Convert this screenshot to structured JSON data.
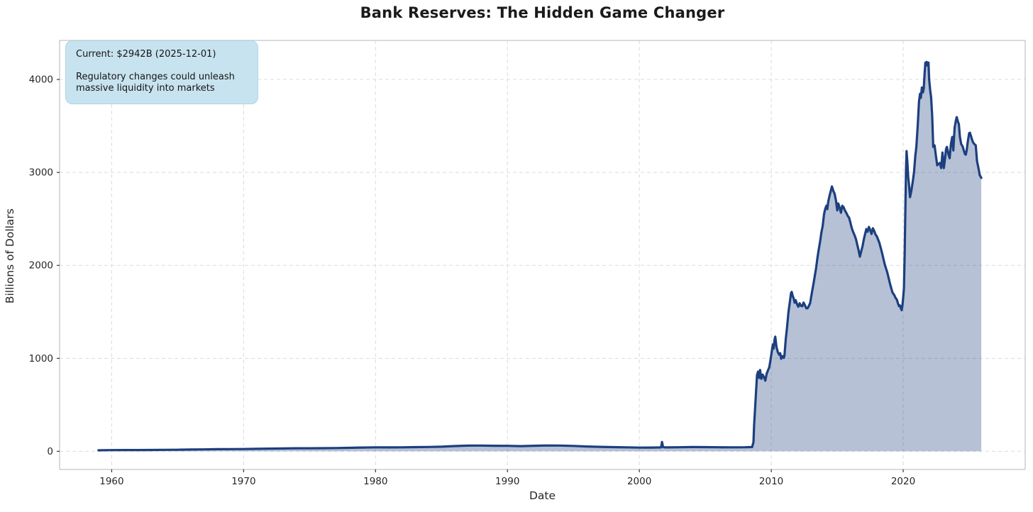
{
  "title": "Bank Reserves: The Hidden Game Changer",
  "annotation": {
    "current_line": "Current: $2942B (2025-12-01)",
    "body": "Regulatory changes could unleash massive liquidity into markets"
  },
  "colors": {
    "line": "#1c3f7e",
    "fill": "#1c3f7e",
    "fill_opacity": 0.32,
    "grid": "#dbdbdb",
    "spine": "#c2c2c2",
    "tick_mark": "#333333",
    "tick_text": "#262626",
    "annotation_bg": "#c7e3ef",
    "title_text": "#1a1a1a"
  },
  "chart_data": {
    "type": "area",
    "title": "Bank Reserves: The Hidden Game Changer",
    "xlabel": "Date",
    "ylabel": "Billions of Dollars",
    "xlim": [
      1956.05,
      2029.25
    ],
    "ylim": [
      -195,
      4420
    ],
    "x_ticks": [
      1960,
      1970,
      1980,
      1990,
      2000,
      2010,
      2020
    ],
    "y_ticks": [
      0,
      1000,
      2000,
      3000,
      4000
    ],
    "grid": true,
    "grid_style": "dashed",
    "legend": "none",
    "current_value": 2942,
    "current_date": "2025-12-01",
    "series": [
      {
        "name": "Bank Reserves (Billions of Dollars)",
        "points": [
          [
            1959.0,
            11
          ],
          [
            1960,
            13
          ],
          [
            1961,
            14
          ],
          [
            1962,
            14
          ],
          [
            1963,
            15
          ],
          [
            1964,
            16
          ],
          [
            1965,
            17
          ],
          [
            1966,
            19
          ],
          [
            1967,
            21
          ],
          [
            1968,
            23
          ],
          [
            1969,
            24
          ],
          [
            1970,
            25
          ],
          [
            1971,
            27
          ],
          [
            1972,
            29
          ],
          [
            1973,
            31
          ],
          [
            1974,
            33
          ],
          [
            1975,
            33
          ],
          [
            1976,
            34
          ],
          [
            1977,
            35
          ],
          [
            1978,
            38
          ],
          [
            1979,
            41
          ],
          [
            1980,
            43
          ],
          [
            1981,
            42
          ],
          [
            1982,
            43
          ],
          [
            1983,
            45
          ],
          [
            1984,
            47
          ],
          [
            1985,
            50
          ],
          [
            1986,
            57
          ],
          [
            1987,
            61
          ],
          [
            1988,
            62
          ],
          [
            1989,
            60
          ],
          [
            1990,
            59
          ],
          [
            1991,
            56
          ],
          [
            1992,
            60
          ],
          [
            1993,
            63
          ],
          [
            1994,
            62
          ],
          [
            1995,
            58
          ],
          [
            1996,
            52
          ],
          [
            1997,
            48
          ],
          [
            1998,
            45
          ],
          [
            1999,
            43
          ],
          [
            2000,
            40
          ],
          [
            2001.0,
            41
          ],
          [
            2001.65,
            42
          ],
          [
            2001.72,
            101
          ],
          [
            2001.8,
            46
          ],
          [
            2002,
            42
          ],
          [
            2003,
            44
          ],
          [
            2004,
            46
          ],
          [
            2005,
            45
          ],
          [
            2006,
            44
          ],
          [
            2007,
            43
          ],
          [
            2008.0,
            44
          ],
          [
            2008.55,
            46
          ],
          [
            2008.65,
            98
          ],
          [
            2008.7,
            280
          ],
          [
            2008.78,
            475
          ],
          [
            2008.85,
            650
          ],
          [
            2008.92,
            820
          ],
          [
            2009.0,
            858
          ],
          [
            2009.08,
            790
          ],
          [
            2009.15,
            875
          ],
          [
            2009.25,
            780
          ],
          [
            2009.35,
            825
          ],
          [
            2009.45,
            795
          ],
          [
            2009.55,
            760
          ],
          [
            2009.65,
            835
          ],
          [
            2009.75,
            870
          ],
          [
            2009.85,
            905
          ],
          [
            2009.95,
            990
          ],
          [
            2010.05,
            1085
          ],
          [
            2010.12,
            1150
          ],
          [
            2010.18,
            1105
          ],
          [
            2010.25,
            1200
          ],
          [
            2010.3,
            1234
          ],
          [
            2010.4,
            1120
          ],
          [
            2010.5,
            1066
          ],
          [
            2010.6,
            1040
          ],
          [
            2010.68,
            1055
          ],
          [
            2010.75,
            995
          ],
          [
            2010.85,
            1025
          ],
          [
            2010.95,
            1005
          ],
          [
            2011.0,
            1031
          ],
          [
            2011.1,
            1205
          ],
          [
            2011.2,
            1340
          ],
          [
            2011.3,
            1495
          ],
          [
            2011.42,
            1620
          ],
          [
            2011.5,
            1705
          ],
          [
            2011.55,
            1714
          ],
          [
            2011.62,
            1675
          ],
          [
            2011.7,
            1645
          ],
          [
            2011.77,
            1599
          ],
          [
            2011.85,
            1625
          ],
          [
            2011.95,
            1585
          ],
          [
            2012.05,
            1555
          ],
          [
            2012.15,
            1592
          ],
          [
            2012.25,
            1565
          ],
          [
            2012.35,
            1561
          ],
          [
            2012.45,
            1600
          ],
          [
            2012.55,
            1572
          ],
          [
            2012.65,
            1540
          ],
          [
            2012.75,
            1538
          ],
          [
            2012.85,
            1565
          ],
          [
            2012.95,
            1595
          ],
          [
            2013.0,
            1642
          ],
          [
            2013.1,
            1722
          ],
          [
            2013.2,
            1802
          ],
          [
            2013.3,
            1885
          ],
          [
            2013.4,
            1972
          ],
          [
            2013.5,
            2082
          ],
          [
            2013.6,
            2172
          ],
          [
            2013.7,
            2255
          ],
          [
            2013.8,
            2352
          ],
          [
            2013.9,
            2425
          ],
          [
            2014.0,
            2552
          ],
          [
            2014.1,
            2612
          ],
          [
            2014.18,
            2643
          ],
          [
            2014.25,
            2605
          ],
          [
            2014.32,
            2685
          ],
          [
            2014.42,
            2752
          ],
          [
            2014.52,
            2805
          ],
          [
            2014.6,
            2849
          ],
          [
            2014.7,
            2802
          ],
          [
            2014.8,
            2772
          ],
          [
            2014.9,
            2702
          ],
          [
            2015.0,
            2592
          ],
          [
            2015.08,
            2666
          ],
          [
            2015.18,
            2622
          ],
          [
            2015.28,
            2566
          ],
          [
            2015.38,
            2642
          ],
          [
            2015.48,
            2627
          ],
          [
            2015.58,
            2592
          ],
          [
            2015.7,
            2562
          ],
          [
            2015.8,
            2532
          ],
          [
            2015.9,
            2513
          ],
          [
            2016.0,
            2462
          ],
          [
            2016.1,
            2402
          ],
          [
            2016.2,
            2361
          ],
          [
            2016.32,
            2322
          ],
          [
            2016.42,
            2282
          ],
          [
            2016.52,
            2222
          ],
          [
            2016.62,
            2162
          ],
          [
            2016.72,
            2094
          ],
          [
            2016.82,
            2152
          ],
          [
            2016.92,
            2205
          ],
          [
            2017.02,
            2282
          ],
          [
            2017.12,
            2342
          ],
          [
            2017.2,
            2391
          ],
          [
            2017.3,
            2362
          ],
          [
            2017.4,
            2414
          ],
          [
            2017.5,
            2382
          ],
          [
            2017.6,
            2338
          ],
          [
            2017.7,
            2399
          ],
          [
            2017.8,
            2372
          ],
          [
            2017.9,
            2332
          ],
          [
            2018.0,
            2315
          ],
          [
            2018.2,
            2242
          ],
          [
            2018.4,
            2132
          ],
          [
            2018.6,
            2012
          ],
          [
            2018.8,
            1922
          ],
          [
            2019.0,
            1805
          ],
          [
            2019.1,
            1752
          ],
          [
            2019.2,
            1706
          ],
          [
            2019.32,
            1682
          ],
          [
            2019.42,
            1652
          ],
          [
            2019.52,
            1632
          ],
          [
            2019.6,
            1592
          ],
          [
            2019.68,
            1562
          ],
          [
            2019.75,
            1569
          ],
          [
            2019.82,
            1542
          ],
          [
            2019.88,
            1518
          ],
          [
            2019.94,
            1565
          ],
          [
            2020.0,
            1652
          ],
          [
            2020.06,
            1752
          ],
          [
            2020.12,
            2152
          ],
          [
            2020.17,
            2652
          ],
          [
            2020.22,
            3052
          ],
          [
            2020.26,
            3229
          ],
          [
            2020.32,
            3102
          ],
          [
            2020.38,
            2952
          ],
          [
            2020.44,
            2871
          ],
          [
            2020.52,
            2734
          ],
          [
            2020.62,
            2802
          ],
          [
            2020.72,
            2894
          ],
          [
            2020.82,
            3002
          ],
          [
            2020.92,
            3176
          ],
          [
            2021.0,
            3275
          ],
          [
            2021.1,
            3502
          ],
          [
            2021.2,
            3762
          ],
          [
            2021.28,
            3846
          ],
          [
            2021.34,
            3802
          ],
          [
            2021.42,
            3914
          ],
          [
            2021.5,
            3861
          ],
          [
            2021.56,
            3902
          ],
          [
            2021.62,
            4052
          ],
          [
            2021.68,
            4181
          ],
          [
            2021.73,
            4152
          ],
          [
            2021.78,
            4189
          ],
          [
            2021.83,
            4151
          ],
          [
            2021.88,
            4170
          ],
          [
            2021.92,
            4181
          ],
          [
            2021.97,
            4002
          ],
          [
            2022.05,
            3884
          ],
          [
            2022.12,
            3808
          ],
          [
            2022.2,
            3610
          ],
          [
            2022.28,
            3275
          ],
          [
            2022.38,
            3290
          ],
          [
            2022.48,
            3182
          ],
          [
            2022.58,
            3077
          ],
          [
            2022.68,
            3092
          ],
          [
            2022.78,
            3102
          ],
          [
            2022.88,
            3047
          ],
          [
            2022.98,
            3214
          ],
          [
            2023.08,
            3047
          ],
          [
            2023.18,
            3152
          ],
          [
            2023.25,
            3252
          ],
          [
            2023.32,
            3275
          ],
          [
            2023.42,
            3202
          ],
          [
            2023.52,
            3153
          ],
          [
            2023.62,
            3305
          ],
          [
            2023.72,
            3382
          ],
          [
            2023.8,
            3237
          ],
          [
            2023.9,
            3481
          ],
          [
            2024.0,
            3562
          ],
          [
            2024.06,
            3595
          ],
          [
            2024.14,
            3552
          ],
          [
            2024.22,
            3519
          ],
          [
            2024.3,
            3381
          ],
          [
            2024.4,
            3305
          ],
          [
            2024.5,
            3282
          ],
          [
            2024.6,
            3237
          ],
          [
            2024.68,
            3199
          ],
          [
            2024.75,
            3191
          ],
          [
            2024.82,
            3242
          ],
          [
            2024.9,
            3332
          ],
          [
            2025.0,
            3422
          ],
          [
            2025.06,
            3427
          ],
          [
            2025.14,
            3392
          ],
          [
            2025.22,
            3351
          ],
          [
            2025.3,
            3322
          ],
          [
            2025.4,
            3305
          ],
          [
            2025.5,
            3292
          ],
          [
            2025.6,
            3122
          ],
          [
            2025.7,
            3052
          ],
          [
            2025.8,
            2972
          ],
          [
            2025.92,
            2942
          ]
        ]
      }
    ]
  }
}
